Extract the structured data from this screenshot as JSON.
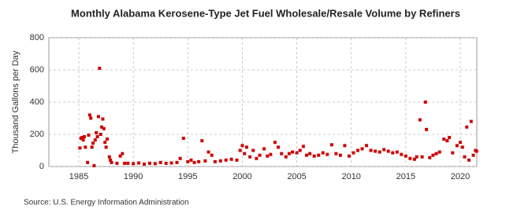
{
  "chart_data": {
    "type": "scatter",
    "title": "Monthly Alabama Kerosene-Type Jet Fuel Wholesale/Resale Volume by Refiners",
    "y_label": "Thousand Gallons per Day",
    "source": "Source: U.S. Energy Information Administration",
    "color": "#cc0000",
    "grid": true,
    "x": [
      1985.1,
      1985.2,
      1985.3,
      1985.4,
      1985.5,
      1985.6,
      1985.8,
      1985.9,
      1986.0,
      1986.1,
      1986.2,
      1986.3,
      1986.4,
      1986.5,
      1986.6,
      1986.7,
      1986.8,
      1986.9,
      1987.0,
      1987.1,
      1987.2,
      1987.3,
      1987.4,
      1987.5,
      1987.6,
      1987.8,
      1987.9,
      1988.0,
      1988.5,
      1988.8,
      1989.0,
      1989.2,
      1989.5,
      1990,
      1990.5,
      1991,
      1991.5,
      1992,
      1992.5,
      1993,
      1993.5,
      1994,
      1994.3,
      1994.6,
      1995,
      1995.3,
      1995.6,
      1996,
      1996.3,
      1996.6,
      1996.9,
      1997.2,
      1997.5,
      1998,
      1998.5,
      1999,
      1999.5,
      1999.8,
      2000,
      2000.2,
      2000.4,
      2000.7,
      2001,
      2001.3,
      2001.6,
      2002,
      2002.3,
      2002.6,
      2003,
      2003.3,
      2003.6,
      2004,
      2004.3,
      2004.6,
      2005,
      2005.3,
      2005.6,
      2005.9,
      2006.2,
      2006.6,
      2007,
      2007.4,
      2007.8,
      2008.2,
      2008.6,
      2009,
      2009.4,
      2009.8,
      2010.2,
      2010.6,
      2011,
      2011.4,
      2011.8,
      2012.2,
      2012.6,
      2013,
      2013.4,
      2013.8,
      2014.2,
      2014.6,
      2015,
      2015.4,
      2015.8,
      2016,
      2016.3,
      2016.5,
      2016.8,
      2016.9,
      2017.2,
      2017.5,
      2017.8,
      2018.1,
      2018.5,
      2018.8,
      2019,
      2019.3,
      2019.7,
      2020,
      2020.2,
      2020.4,
      2020.6,
      2020.8,
      2021,
      2021.2,
      2021.4,
      2021.5
    ],
    "values": [
      115,
      175,
      180,
      165,
      185,
      120,
      25,
      195,
      320,
      300,
      120,
      145,
      5,
      165,
      210,
      185,
      310,
      610,
      200,
      245,
      295,
      235,
      150,
      120,
      170,
      60,
      40,
      25,
      20,
      65,
      80,
      20,
      20,
      18,
      22,
      15,
      20,
      18,
      25,
      20,
      22,
      25,
      50,
      175,
      30,
      40,
      25,
      30,
      160,
      35,
      90,
      70,
      30,
      35,
      40,
      45,
      40,
      100,
      130,
      80,
      120,
      60,
      100,
      50,
      70,
      110,
      65,
      75,
      150,
      120,
      80,
      60,
      80,
      90,
      85,
      100,
      125,
      70,
      80,
      65,
      70,
      85,
      75,
      135,
      80,
      70,
      130,
      65,
      85,
      100,
      110,
      130,
      100,
      95,
      90,
      105,
      95,
      85,
      90,
      75,
      65,
      50,
      45,
      60,
      290,
      60,
      400,
      230,
      55,
      70,
      80,
      90,
      170,
      160,
      180,
      85,
      130,
      150,
      120,
      60,
      245,
      40,
      280,
      70,
      100,
      95
    ],
    "xlim": [
      1982.25,
      2021.52
    ],
    "xticks": [
      1985,
      1990,
      1995,
      2000,
      2005,
      2010,
      2015,
      2020
    ],
    "ylim": [
      0,
      800
    ],
    "yticks": [
      0,
      200,
      400,
      600,
      800
    ]
  }
}
